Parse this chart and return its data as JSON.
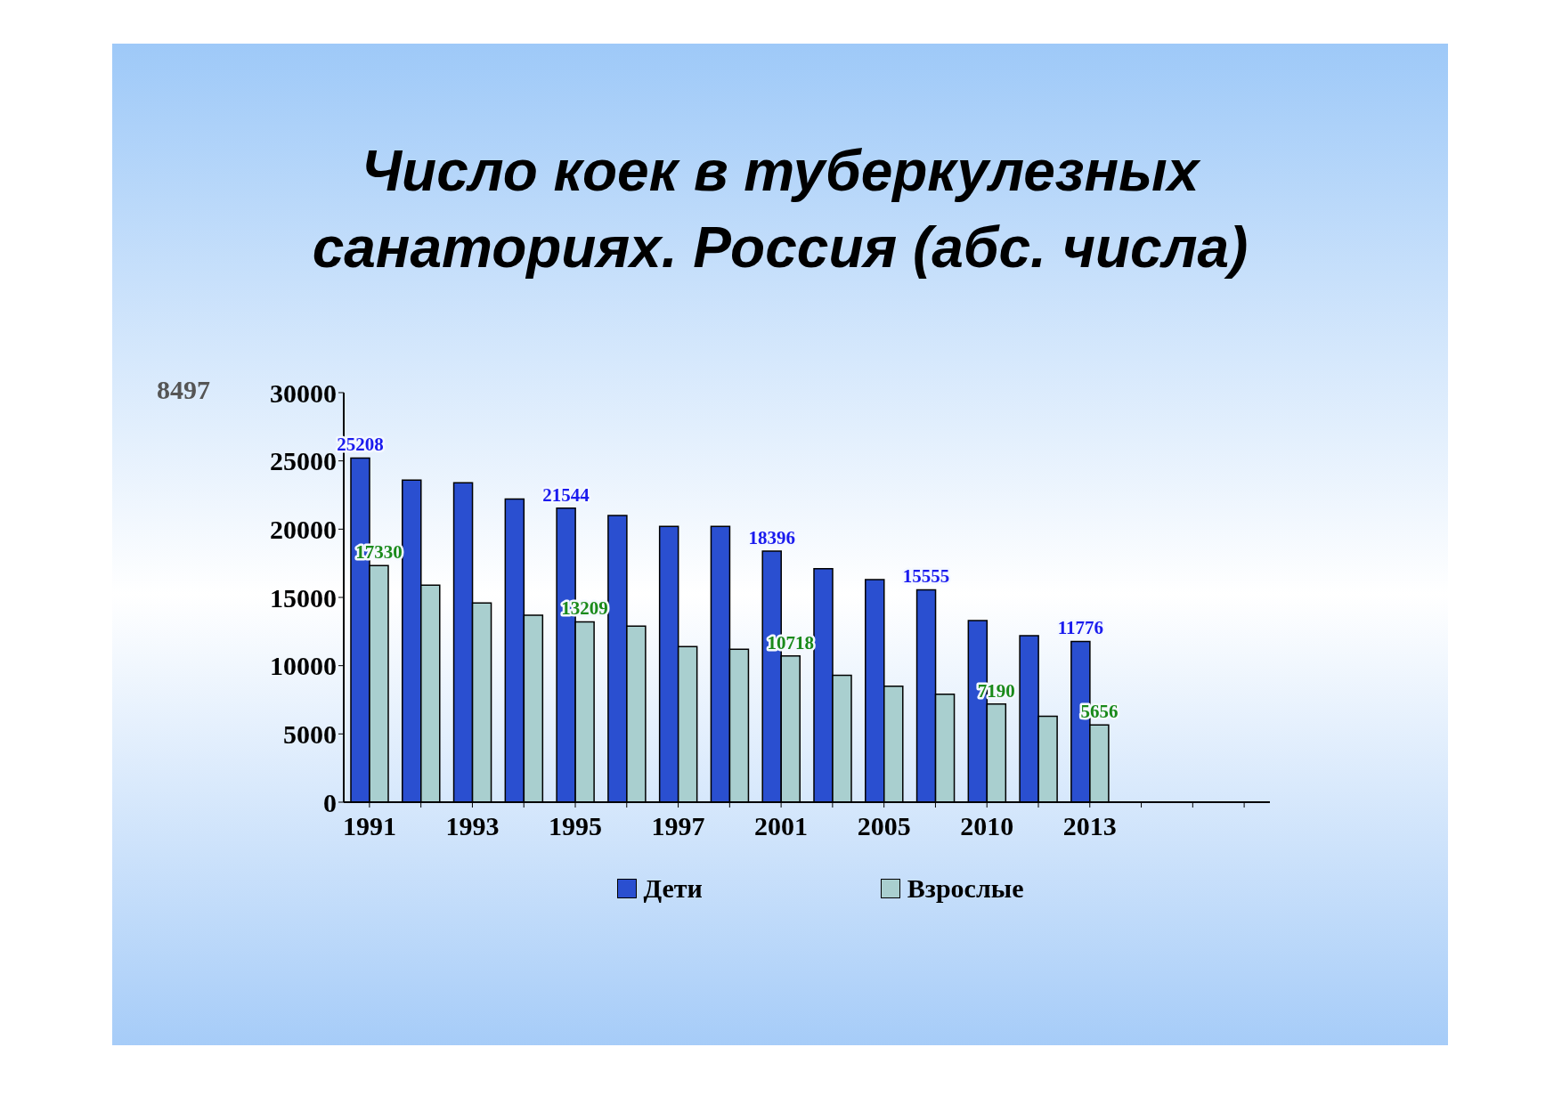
{
  "chart_data": {
    "type": "bar",
    "title": "Число коек в туберкулезных санаториях. Россия (абс. числа)",
    "categories": [
      "1991",
      null,
      "1993",
      null,
      "1995",
      null,
      "1997",
      null,
      "2001",
      null,
      "2005",
      null,
      "2010",
      null,
      "2013",
      null,
      null,
      null
    ],
    "series": [
      {
        "name": "Дети",
        "color": "#2a4fd0",
        "values": [
          25208,
          23600,
          23400,
          22200,
          21544,
          21000,
          20200,
          20200,
          18396,
          17100,
          16300,
          15555,
          13300,
          12200,
          11776,
          null,
          null,
          null
        ],
        "value_labels": [
          "25208",
          null,
          null,
          null,
          "21544",
          null,
          null,
          null,
          "18396",
          null,
          null,
          "15555",
          null,
          null,
          "11776",
          null,
          null,
          null
        ]
      },
      {
        "name": "Взрослые",
        "color": "#a9cfcf",
        "values": [
          17330,
          15900,
          14600,
          13700,
          13209,
          12900,
          11400,
          11200,
          10718,
          9300,
          8500,
          7900,
          7190,
          6300,
          5656,
          null,
          null,
          null
        ],
        "value_labels": [
          "17330",
          null,
          null,
          null,
          "13209",
          null,
          null,
          null,
          "10718",
          null,
          null,
          null,
          "7190",
          null,
          "5656",
          null,
          null,
          null
        ]
      }
    ],
    "ylim": [
      0,
      30000
    ],
    "yticks": [
      0,
      5000,
      10000,
      15000,
      20000,
      25000,
      30000
    ],
    "annotations": [
      "8497"
    ],
    "legend": "bottom",
    "grid": false
  }
}
